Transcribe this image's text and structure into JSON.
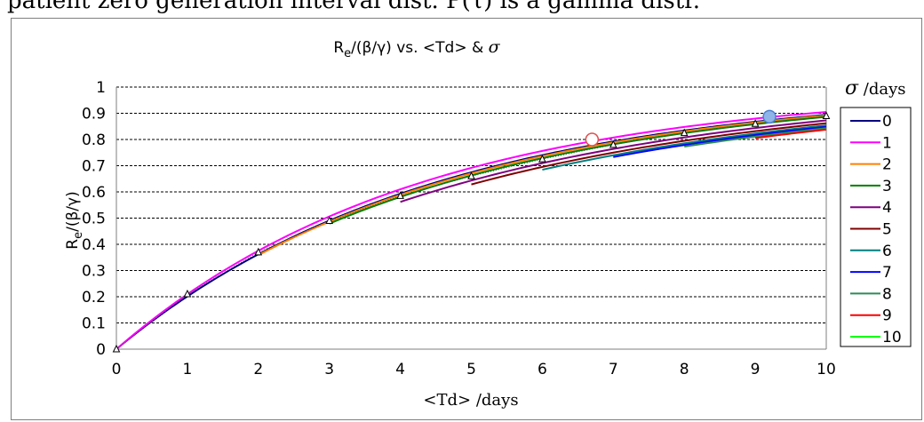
{
  "top_caption": "patient zero generation interval dist. P(τ) is a gamma distr.",
  "chart_data": {
    "type": "line",
    "title": "Re/(β/γ) vs. <Td> & σ",
    "title_parts": {
      "r": "R",
      "sub": "e",
      "rest": "/(β/γ) vs. <Td>  & ",
      "sigma": "σ"
    },
    "xlabel": "<Td> /days",
    "ylabel": "Re/(β/γ)",
    "ylabel_parts": {
      "r": "R",
      "sub": "e",
      "rest": "/(β/γ)"
    },
    "xlim": [
      0,
      10
    ],
    "ylim": [
      0,
      1
    ],
    "x_ticks": [
      "0",
      "1",
      "2",
      "3",
      "4",
      "5",
      "6",
      "7",
      "8",
      "9",
      "10"
    ],
    "y_ticks": [
      "0",
      "0.1",
      "0.2",
      "0.3",
      "0.4",
      "0.5",
      "0.6",
      "0.7",
      "0.8",
      "0.9",
      "1"
    ],
    "grid": "horizontal dashed",
    "legend": {
      "title": "σ /days",
      "title_sigma": "σ",
      "title_unit": " /days",
      "placement": "right"
    },
    "series": [
      {
        "name": "0",
        "color": "#00007f",
        "x_start": 0,
        "k": 1.0,
        "T": 4.45
      },
      {
        "name": "1",
        "color": "#ff00ff",
        "x_start": 0,
        "k": 1.0,
        "T": 4.25
      },
      {
        "name": "2",
        "color": "#ff7f00",
        "x_start": 2,
        "k": 0.9,
        "T": 4.5
      },
      {
        "name": "3",
        "color": "#007f00",
        "x_start": 3,
        "k": 0.75,
        "T": 4.6
      },
      {
        "name": "4",
        "color": "#7f007f",
        "x_start": 4,
        "k": 0.58,
        "T": 4.85
      },
      {
        "name": "5",
        "color": "#7f0000",
        "x_start": 5,
        "k": 0.42,
        "T": 5.05
      },
      {
        "name": "6",
        "color": "#007f7f",
        "x_start": 6,
        "k": 0.28,
        "T": 5.2
      },
      {
        "name": "7",
        "color": "#0000ff",
        "x_start": 7,
        "k": 0.16,
        "T": 5.3
      },
      {
        "name": "8",
        "color": "#2e8b57",
        "x_start": 8,
        "k": 0.08,
        "T": 5.4
      },
      {
        "name": "9",
        "color": "#ff0000",
        "x_start": 9,
        "k": 0.03,
        "T": 5.5
      },
      {
        "name": "10",
        "color": "#00ff00",
        "x_start": 10,
        "k": 0.0,
        "T": 5.5
      }
    ],
    "triangle_points": {
      "x": [
        0,
        1,
        2,
        3,
        4,
        5,
        6,
        7,
        8,
        9,
        10
      ],
      "y": [
        0,
        0.21,
        0.37,
        0.49,
        0.585,
        0.66,
        0.725,
        0.78,
        0.825,
        0.86,
        0.89
      ]
    },
    "highlight_points": [
      {
        "x": 6.7,
        "y": 0.8,
        "fill": "#ffffff",
        "stroke": "#e05050"
      },
      {
        "x": 9.2,
        "y": 0.887,
        "fill": "#8fb4e8",
        "stroke": "#4a7fd0"
      }
    ]
  }
}
